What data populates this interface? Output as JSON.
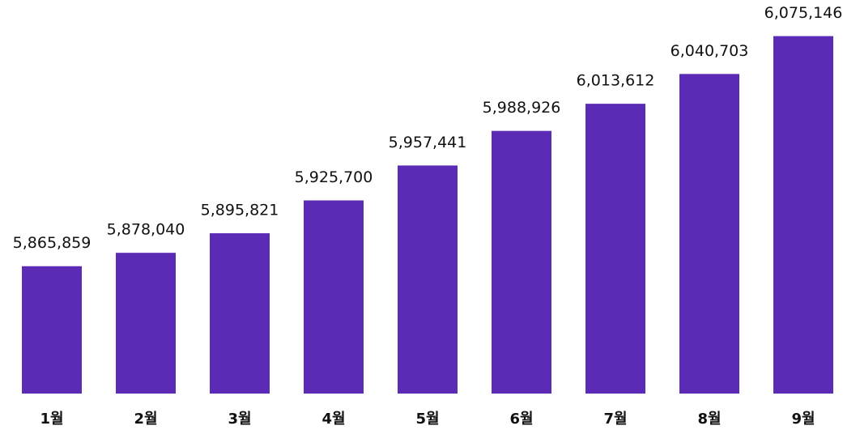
{
  "chart_data": {
    "type": "bar",
    "categories": [
      "1월",
      "2월",
      "3월",
      "4월",
      "5월",
      "6월",
      "7월",
      "8월",
      "9월"
    ],
    "values": [
      5865859,
      5878040,
      5895821,
      5925700,
      5957441,
      5988926,
      6013612,
      6040703,
      6075146
    ],
    "value_labels": [
      "5,865,859",
      "5,878,040",
      "5,895,821",
      "5,925,700",
      "5,957,441",
      "5,988,926",
      "6,013,612",
      "6,040,703",
      "6,075,146"
    ],
    "color": "#5c2bb6",
    "ylim": [
      5750000,
      6080000
    ]
  }
}
